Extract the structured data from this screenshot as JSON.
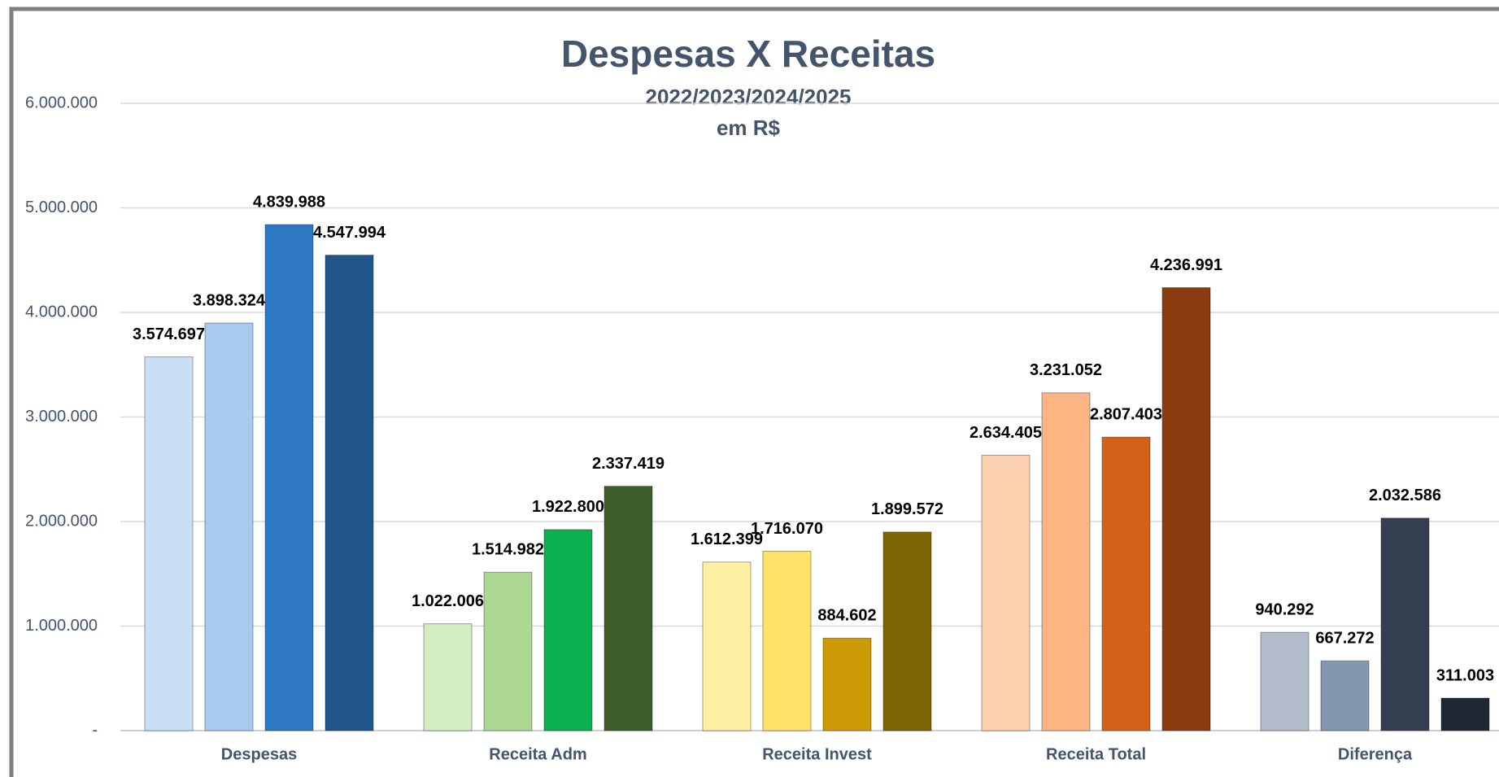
{
  "chart_data": {
    "type": "bar",
    "title": "Despesas X Receitas",
    "subtitle": [
      "2022/2023/2024/2025",
      "em R$"
    ],
    "categories": [
      "Despesas",
      "Receita Adm",
      "Receita Invest",
      "Receita Total",
      "Diferença"
    ],
    "values": [
      [
        3574697,
        3898324,
        4839988,
        4547994
      ],
      [
        1022006,
        1514982,
        1922800,
        2337419
      ],
      [
        1612399,
        1716070,
        884602,
        1899572
      ],
      [
        2634405,
        3231052,
        2807403,
        4236991
      ],
      [
        940292,
        667272,
        2032586,
        311003
      ]
    ],
    "value_labels": [
      [
        "3.574.697",
        "3.898.324",
        "4.839.988",
        "4.547.994"
      ],
      [
        "1.022.006",
        "1.514.982",
        "1.922.800",
        "2.337.419"
      ],
      [
        "1.612.399",
        "1.716.070",
        "884.602",
        "1.899.572"
      ],
      [
        "2.634.405",
        "3.231.052",
        "2.807.403",
        "4.236.991"
      ],
      [
        "940.292",
        "667.272",
        "2.032.586",
        "311.003"
      ]
    ],
    "colors": [
      [
        "#c9dff5",
        "#a8caee",
        "#2e78c4",
        "#22558a"
      ],
      [
        "#d3ecc2",
        "#add894",
        "#0bb04f",
        "#3d5e28"
      ],
      [
        "#fdf0a3",
        "#fee26a",
        "#cc9a05",
        "#7f6403"
      ],
      [
        "#fcd2b1",
        "#fbb583",
        "#d4611a",
        "#8b3d0f"
      ],
      [
        "#b2bccb",
        "#8497b0",
        "#333f50",
        "#1e2733"
      ]
    ],
    "ylim": [
      0,
      6000000
    ],
    "yticks": [
      {
        "value": 0,
        "label": "-"
      },
      {
        "value": 1000000,
        "label": "1.000.000"
      },
      {
        "value": 2000000,
        "label": "2.000.000"
      },
      {
        "value": 3000000,
        "label": "3.000.000"
      },
      {
        "value": 4000000,
        "label": "4.000.000"
      },
      {
        "value": 5000000,
        "label": "5.000.000"
      },
      {
        "value": 6000000,
        "label": "6.000.000"
      }
    ],
    "grid": true
  }
}
